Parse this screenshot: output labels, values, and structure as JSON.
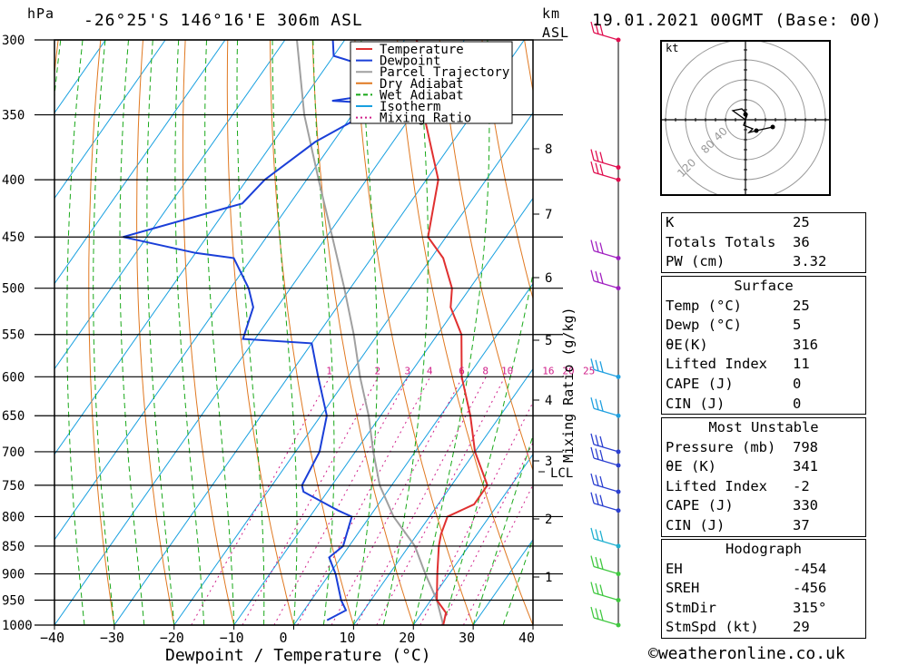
{
  "header": {
    "hpa_label": "hPa",
    "location": "-26°25'S 146°16'E 306m ASL",
    "km_label": "km",
    "asl_label": "ASL",
    "datetime": "19.01.2021 00GMT (Base: 00)"
  },
  "legend": [
    "Temperature",
    "Dewpoint",
    "Parcel Trajectory",
    "Dry Adiabat",
    "Wet Adiabat",
    "Isotherm",
    "Mixing Ratio"
  ],
  "colors": {
    "temperature": "#e03030",
    "dewpoint": "#1a3fd8",
    "parcel": "#a0a0a0",
    "dry_adiabat": "#e07820",
    "wet_adiabat": "#18a818",
    "isotherm": "#18a0e0",
    "mixing_ratio": "#d0208a"
  },
  "chart_data": {
    "type": "line",
    "title": "-26°25'S 146°16'E 306m ASL",
    "xlabel": "Dewpoint / Temperature (°C)",
    "ylabel": "hPa",
    "xlim": [
      -40,
      40
    ],
    "ylim": [
      1000,
      300
    ],
    "x_ticks": [
      "−40",
      "−30",
      "−20",
      "−10",
      "0",
      "10",
      "20",
      "30",
      "40"
    ],
    "pressure_levels": [
      "300",
      "350",
      "400",
      "450",
      "500",
      "550",
      "600",
      "650",
      "700",
      "750",
      "800",
      "850",
      "900",
      "950",
      "1000"
    ],
    "height_km": [
      "8",
      "7",
      "6",
      "5",
      "4",
      "3",
      "2",
      "1"
    ],
    "lcl_label": "LCL",
    "mixing_ratio_axis_label": "Mixing Ratio (g/kg)",
    "mixing_ratio_values": [
      "1",
      "2",
      "3",
      "4",
      "6",
      "8",
      "10",
      "16",
      "20",
      "25"
    ],
    "series": [
      {
        "name": "Temperature",
        "points": [
          [
            1000,
            25
          ],
          [
            975,
            24
          ],
          [
            950,
            21
          ],
          [
            900,
            18
          ],
          [
            850,
            15
          ],
          [
            830,
            14
          ],
          [
            800,
            13
          ],
          [
            780,
            16
          ],
          [
            750,
            16
          ],
          [
            700,
            10
          ],
          [
            650,
            5
          ],
          [
            600,
            -1
          ],
          [
            550,
            -6
          ],
          [
            520,
            -11
          ],
          [
            500,
            -13
          ],
          [
            470,
            -18
          ],
          [
            450,
            -23
          ],
          [
            400,
            -28
          ],
          [
            350,
            -38
          ],
          [
            330,
            -40
          ],
          [
            300,
            -48
          ]
        ]
      },
      {
        "name": "Dewpoint",
        "points": [
          [
            990,
            5
          ],
          [
            970,
            7
          ],
          [
            950,
            5
          ],
          [
            900,
            1
          ],
          [
            870,
            -2
          ],
          [
            850,
            -1
          ],
          [
            800,
            -3
          ],
          [
            790,
            -6
          ],
          [
            760,
            -14
          ],
          [
            750,
            -15
          ],
          [
            700,
            -16
          ],
          [
            650,
            -19
          ],
          [
            600,
            -25
          ],
          [
            560,
            -30
          ],
          [
            555,
            -42
          ],
          [
            520,
            -44
          ],
          [
            500,
            -47
          ],
          [
            470,
            -53
          ],
          [
            465,
            -60
          ],
          [
            450,
            -74
          ],
          [
            420,
            -58
          ],
          [
            400,
            -57
          ],
          [
            370,
            -53
          ],
          [
            350,
            -48
          ],
          [
            345,
            -34
          ],
          [
            340,
            -55
          ],
          [
            330,
            -40
          ],
          [
            310,
            -60
          ],
          [
            300,
            -62
          ]
        ]
      },
      {
        "name": "Parcel Trajectory",
        "points": [
          [
            1000,
            25
          ],
          [
            950,
            21
          ],
          [
            900,
            16
          ],
          [
            850,
            11
          ],
          [
            800,
            4
          ],
          [
            750,
            -2
          ],
          [
            700,
            -7
          ],
          [
            650,
            -12
          ],
          [
            600,
            -18
          ],
          [
            550,
            -24
          ],
          [
            500,
            -31
          ],
          [
            450,
            -39
          ],
          [
            400,
            -48
          ],
          [
            350,
            -58
          ],
          [
            300,
            -68
          ]
        ]
      }
    ],
    "wind_barbs_hpa": [
      300,
      390,
      400,
      470,
      500,
      600,
      650,
      700,
      720,
      760,
      790,
      850,
      900,
      950,
      1000
    ]
  },
  "hodograph": {
    "unit_label": "kt",
    "ring_labels": [
      "40",
      "80",
      "120"
    ]
  },
  "indices": [
    {
      "label": "K",
      "value": "25"
    },
    {
      "label": "Totals Totals",
      "value": "36"
    },
    {
      "label": "PW (cm)",
      "value": "3.32"
    }
  ],
  "surface": {
    "title": "Surface",
    "rows": [
      {
        "label": "Temp (°C)",
        "value": "25"
      },
      {
        "label": "Dewp (°C)",
        "value": "5"
      },
      {
        "label": "θE(K)",
        "value": "316"
      },
      {
        "label": "Lifted Index",
        "value": "11"
      },
      {
        "label": "CAPE (J)",
        "value": "0"
      },
      {
        "label": "CIN (J)",
        "value": "0"
      }
    ]
  },
  "most_unstable": {
    "title": "Most Unstable",
    "rows": [
      {
        "label": "Pressure (mb)",
        "value": "798"
      },
      {
        "label": "θE (K)",
        "value": "341"
      },
      {
        "label": "Lifted Index",
        "value": "-2"
      },
      {
        "label": "CAPE (J)",
        "value": "330"
      },
      {
        "label": "CIN (J)",
        "value": "37"
      }
    ]
  },
  "hodograph_table": {
    "title": "Hodograph",
    "rows": [
      {
        "label": "EH",
        "value": "-454"
      },
      {
        "label": "SREH",
        "value": "-456"
      },
      {
        "label": "StmDir",
        "value": "315°"
      },
      {
        "label": "StmSpd (kt)",
        "value": "29"
      }
    ]
  },
  "credit": "©weatheronline.co.uk"
}
